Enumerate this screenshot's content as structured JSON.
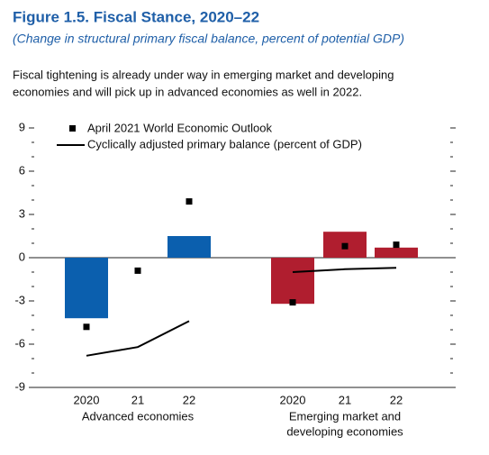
{
  "chart_data": {
    "type": "bar",
    "title": "Figure 1.5.  Fiscal Stance, 2020–22",
    "subtitle": "(Change in structural primary fiscal balance, percent of potential GDP)",
    "note": [
      "Fiscal tightening is already under way in emerging market and developing",
      "economies and will pick up in advanced economies as well in 2022."
    ],
    "ylim": [
      -9,
      9
    ],
    "yticks": [
      -9,
      -6,
      -3,
      0,
      3,
      6,
      9
    ],
    "minor_yticks": [
      -8,
      -7,
      -5,
      -4,
      -2,
      -1,
      1,
      2,
      4,
      5,
      7,
      8
    ],
    "legend": [
      {
        "name": "April 2021 World Economic Outlook",
        "marker": "square",
        "color": "#000000"
      },
      {
        "name": "Cyclically adjusted primary balance (percent of GDP)",
        "marker": "line",
        "color": "#000000"
      }
    ],
    "groups": [
      {
        "label": [
          "Advanced economies"
        ],
        "categories": [
          "2020",
          "21",
          "22"
        ],
        "color": "#0b5fae",
        "bars": [
          -4.2,
          0,
          1.5
        ],
        "weo": [
          -4.8,
          -0.9,
          3.9
        ],
        "capb": [
          -6.8,
          -6.2,
          -4.4
        ]
      },
      {
        "label": [
          "Emerging market and",
          "developing economies"
        ],
        "categories": [
          "2020",
          "21",
          "22"
        ],
        "color": "#b01e2f",
        "bars": [
          -3.2,
          1.8,
          0.7
        ],
        "weo": [
          -3.1,
          0.8,
          0.9
        ],
        "capb": [
          -1.0,
          -0.8,
          -0.7
        ]
      }
    ]
  }
}
